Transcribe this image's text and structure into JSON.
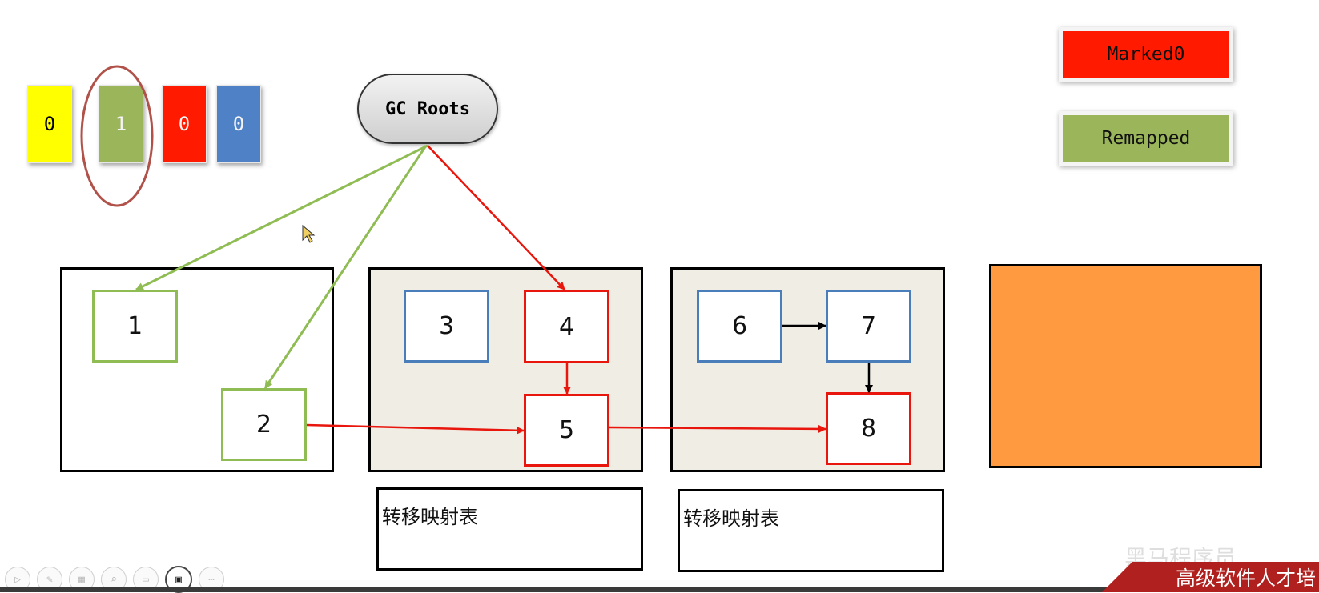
{
  "bits": [
    {
      "value": "0",
      "color": "#ffff00"
    },
    {
      "value": "1",
      "color": "#9bb55b"
    },
    {
      "value": "0",
      "color": "#ff1a00"
    },
    {
      "value": "0",
      "color": "#4f81c7"
    }
  ],
  "legend": {
    "marked0": {
      "label": "Marked0",
      "color": "#ff1a00"
    },
    "remapped": {
      "label": "Remapped",
      "color": "#9bb55b"
    }
  },
  "gc_roots": {
    "label": "GC Roots"
  },
  "objects": {
    "o1": "1",
    "o2": "2",
    "o3": "3",
    "o4": "4",
    "o5": "5",
    "o6": "6",
    "o7": "7",
    "o8": "8"
  },
  "map_tables": [
    "转移映射表",
    "转移映射表"
  ],
  "edges": [
    {
      "from": "GC Roots",
      "to": "1",
      "color": "green"
    },
    {
      "from": "GC Roots",
      "to": "2",
      "color": "green"
    },
    {
      "from": "GC Roots",
      "to": "4",
      "color": "red"
    },
    {
      "from": "4",
      "to": "5",
      "color": "red"
    },
    {
      "from": "2",
      "to": "5",
      "color": "red"
    },
    {
      "from": "5",
      "to": "8",
      "color": "red"
    },
    {
      "from": "6",
      "to": "7",
      "color": "black"
    },
    {
      "from": "7",
      "to": "8",
      "color": "black"
    }
  ],
  "branding": {
    "banner": "高级软件人才培",
    "watermark": "黑马程序员"
  },
  "toolbar_icons": [
    "play-icon",
    "pen-icon",
    "layout-icon",
    "zoom-icon",
    "subtitle-icon",
    "camera-icon",
    "more-icon"
  ]
}
